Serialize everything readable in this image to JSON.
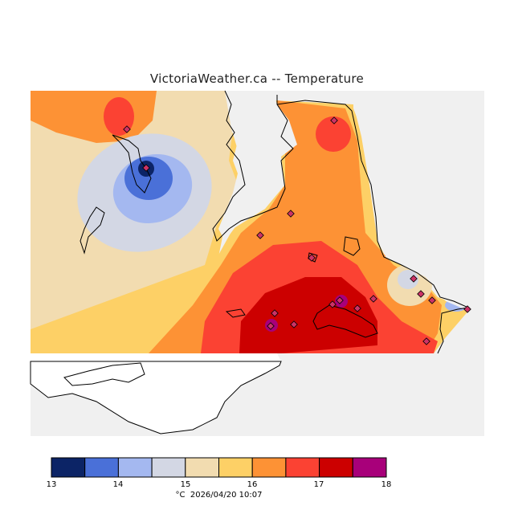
{
  "title": "VictoriaWeather.ca -- Temperature",
  "legend": {
    "ticks": [
      "13",
      "14",
      "15",
      "16",
      "17",
      "18"
    ],
    "unit": "°C",
    "timestamp": "2026/04/20 10:07",
    "bins": [
      {
        "range": "13-13.5",
        "color": "#0c2466"
      },
      {
        "range": "13.5-14",
        "color": "#4a70d8"
      },
      {
        "range": "14-14.5",
        "color": "#a4b8f0"
      },
      {
        "range": "14.5-15",
        "color": "#d3d7e4"
      },
      {
        "range": "15-15.5",
        "color": "#f2dcb0"
      },
      {
        "range": "15.5-16",
        "color": "#fdd066"
      },
      {
        "range": "16-16.5",
        "color": "#fd9235"
      },
      {
        "range": "16.5-17",
        "color": "#fb4233"
      },
      {
        "range": "17-17.5",
        "color": "#cc0000"
      },
      {
        "range": "17.5-18",
        "color": "#a8007a"
      }
    ]
  },
  "colors": {
    "water": "#f0f0f0",
    "land_outside": "#ffffff",
    "station_marker": "#cc3366"
  }
}
